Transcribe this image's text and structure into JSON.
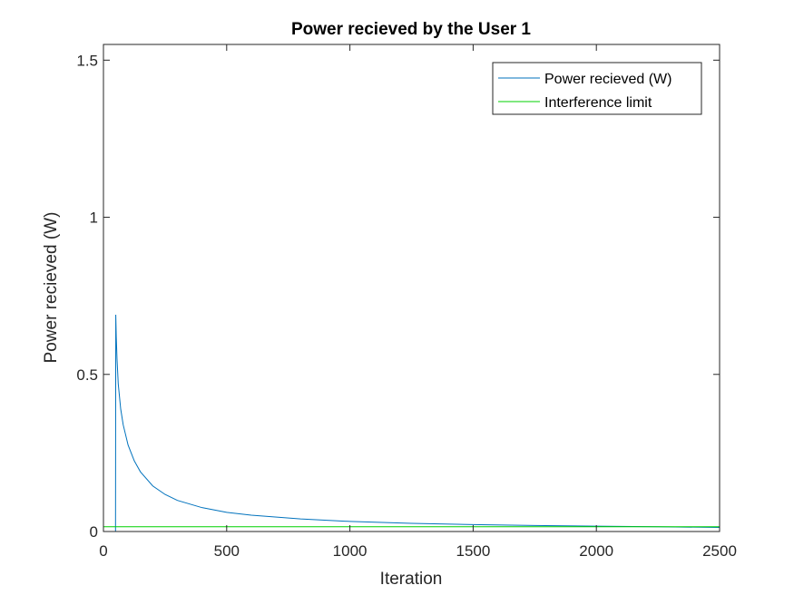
{
  "chart_data": {
    "type": "line",
    "title": "Power recieved by the User 1",
    "xlabel": "Iteration",
    "ylabel": "Power recieved (W)",
    "xlim": [
      0,
      2500
    ],
    "ylim": [
      0,
      1.55
    ],
    "xticks": [
      0,
      500,
      1000,
      1500,
      2000,
      2500
    ],
    "xtick_labels": [
      "0",
      "500",
      "1000",
      "1500",
      "2000",
      "2500"
    ],
    "yticks": [
      0,
      0.5,
      1,
      1.5
    ],
    "ytick_labels": [
      "0",
      "0.5",
      "1",
      "1.5"
    ],
    "grid": false,
    "legend_position": "top-right",
    "series": [
      {
        "name": "Power recieved (W)",
        "color": "#0072BD",
        "x": [
          0,
          49,
          50,
          52,
          55,
          60,
          70,
          80,
          100,
          125,
          150,
          200,
          250,
          300,
          400,
          500,
          600,
          800,
          1000,
          1250,
          1500,
          1750,
          2000,
          2250,
          2500
        ],
        "y": [
          0,
          0,
          0.69,
          0.62,
          0.55,
          0.47,
          0.39,
          0.34,
          0.275,
          0.225,
          0.19,
          0.145,
          0.118,
          0.099,
          0.076,
          0.061,
          0.052,
          0.04,
          0.032,
          0.026,
          0.022,
          0.019,
          0.017,
          0.015,
          0.013
        ]
      },
      {
        "name": "Interference limit",
        "color": "#00D000",
        "x": [
          0,
          2500
        ],
        "y": [
          0.015,
          0.015
        ]
      }
    ]
  }
}
